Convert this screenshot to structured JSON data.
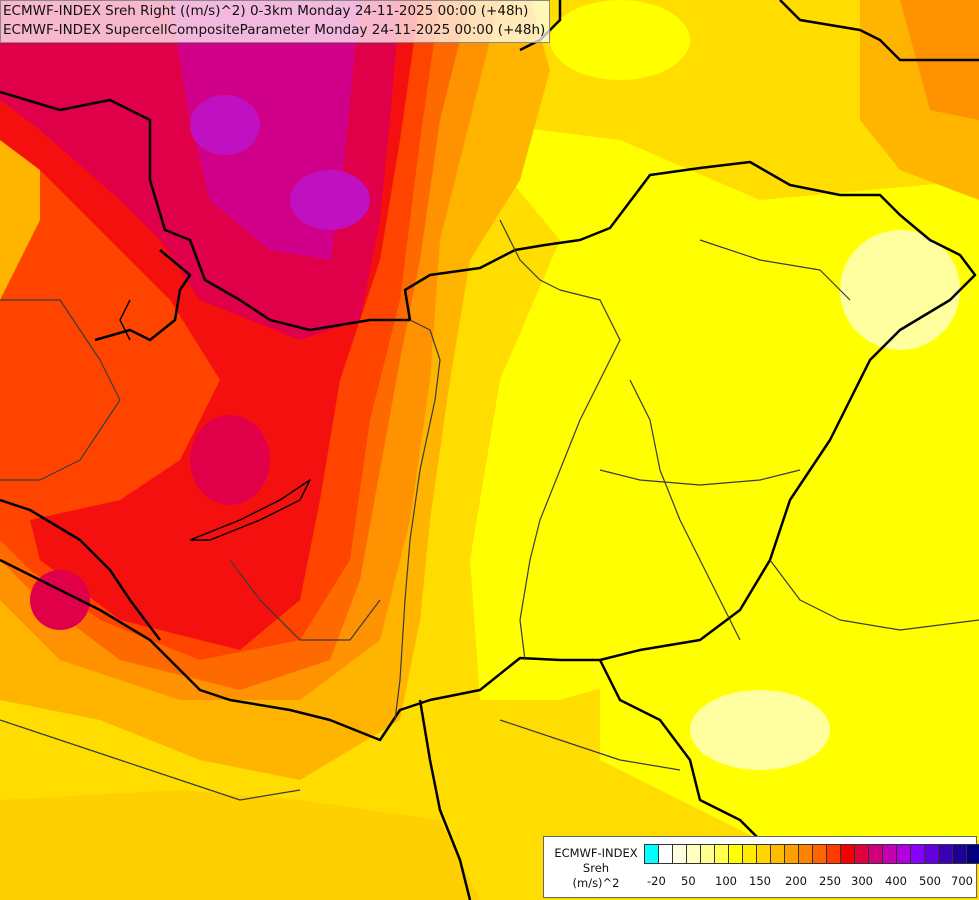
{
  "titles": {
    "line1": "ECMWF-INDEX Sreh Right ((m/s)^2) 0-3km Monday 24-11-2025 00:00 (+48h)",
    "line2": "ECMWF-INDEX SupercellCompositeParameter Monday 24-11-2025 00:00 (+48h)"
  },
  "legend": {
    "line1": "ECMWF-INDEX",
    "line2": "Sreh",
    "line3": "(m/s)^2",
    "swatch_colors": [
      "#00ffff",
      "#ffffff",
      "#ffffe0",
      "#ffffc0",
      "#ffff90",
      "#ffff50",
      "#ffff00",
      "#ffec00",
      "#ffd400",
      "#ffbb00",
      "#ffa000",
      "#ff8200",
      "#ff6400",
      "#ff3c00",
      "#f00000",
      "#e00040",
      "#d0007a",
      "#c800b4",
      "#b400dc",
      "#8800ff",
      "#6400e0",
      "#3c00b4",
      "#1e0096",
      "#000080"
    ],
    "ticks": [
      "-20",
      "50",
      "100",
      "150",
      "200",
      "250",
      "300",
      "400",
      "500",
      "700"
    ]
  },
  "map_colors": {
    "base": "#ffdd00",
    "pale": "#ffffa0",
    "yellow": "#ffff00",
    "gold": "#ffd000",
    "amber": "#ffb400",
    "orange": "#ff9200",
    "dark_orange": "#ff6a00",
    "red_orange": "#ff4400",
    "red": "#f51010",
    "crimson": "#e0004a",
    "magenta": "#d0008a",
    "purple": "#c010c0"
  }
}
